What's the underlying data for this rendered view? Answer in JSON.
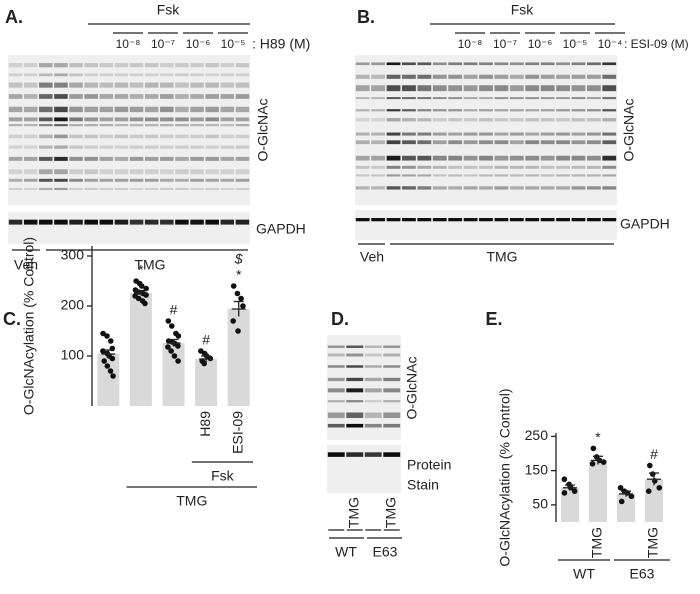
{
  "panels": {
    "A": {
      "label": "A.",
      "treatment": "Fsk",
      "concentrations": [
        "10⁻⁸",
        "10⁻⁷",
        "10⁻⁶",
        "10⁻⁵"
      ],
      "inhibitor": ": H89 (M)",
      "blot_labels": [
        "O-GlcNAc",
        "GAPDH"
      ],
      "lane_groups": [
        "Veh",
        "TMG"
      ]
    },
    "B": {
      "label": "B.",
      "treatment": "Fsk",
      "concentrations": [
        "10⁻⁸",
        "10⁻⁷",
        "10⁻⁶",
        "10⁻⁵",
        "10⁻⁴"
      ],
      "inhibitor": ": ESI-09 (M)",
      "blot_labels": [
        "O-GlcNAc",
        "GAPDH"
      ],
      "lane_groups": [
        "Veh",
        "TMG"
      ]
    },
    "C": {
      "label": "C."
    },
    "D": {
      "label": "D.",
      "blot_labels": [
        "O-GlcNAc",
        "Protein",
        "Stain"
      ],
      "lanes": [
        null,
        "TMG",
        null,
        "TMG"
      ],
      "groups": [
        "WT",
        "E63"
      ]
    },
    "E": {
      "label": "E."
    }
  },
  "chart_data": [
    {
      "type": "bar",
      "ylabel": "O-GlcNAcylation (% Control)",
      "categories": [
        null,
        null,
        null,
        "H89",
        "ESI-09"
      ],
      "values": [
        104,
        226,
        126,
        94,
        194
      ],
      "errors": [
        8,
        5,
        7,
        6,
        15
      ],
      "points": [
        [
          145,
          140,
          130,
          115,
          110,
          105,
          100,
          95,
          90,
          80,
          70,
          60
        ],
        [
          250,
          245,
          240,
          235,
          232,
          228,
          225,
          222,
          220,
          215,
          210,
          205
        ],
        [
          170,
          160,
          145,
          140,
          130,
          128,
          125,
          120,
          118,
          110,
          100,
          90
        ],
        [
          110,
          105,
          100,
          95,
          90,
          85
        ],
        [
          240,
          225,
          215,
          200,
          170,
          150
        ]
      ],
      "annotations": [
        [],
        [
          "*"
        ],
        [
          "#"
        ],
        [
          "#"
        ],
        [
          "$",
          "*"
        ]
      ],
      "group_labels": [
        "Fsk",
        "TMG"
      ],
      "ylim": [
        0,
        320
      ],
      "yticks": [
        100,
        200,
        300
      ],
      "color": "#d9d9d9"
    },
    {
      "type": "bar",
      "ylabel": "O-GlcNAcylation (% Control)",
      "categories": [
        null,
        "TMG",
        null,
        "TMG"
      ],
      "values": [
        100,
        180,
        82,
        125
      ],
      "errors": [
        8,
        12,
        8,
        18
      ],
      "points": [
        [
          125,
          110,
          100,
          90,
          85
        ],
        [
          215,
          190,
          180,
          175,
          170
        ],
        [
          100,
          90,
          85,
          75,
          60
        ],
        [
          165,
          140,
          120,
          100,
          90
        ]
      ],
      "annotations": [
        [],
        [
          "*"
        ],
        [],
        [
          "#"
        ]
      ],
      "group_labels": [
        "WT",
        "E63"
      ],
      "ylim": [
        0,
        260
      ],
      "yticks": [
        50,
        150,
        250
      ],
      "color": "#d9d9d9"
    }
  ]
}
